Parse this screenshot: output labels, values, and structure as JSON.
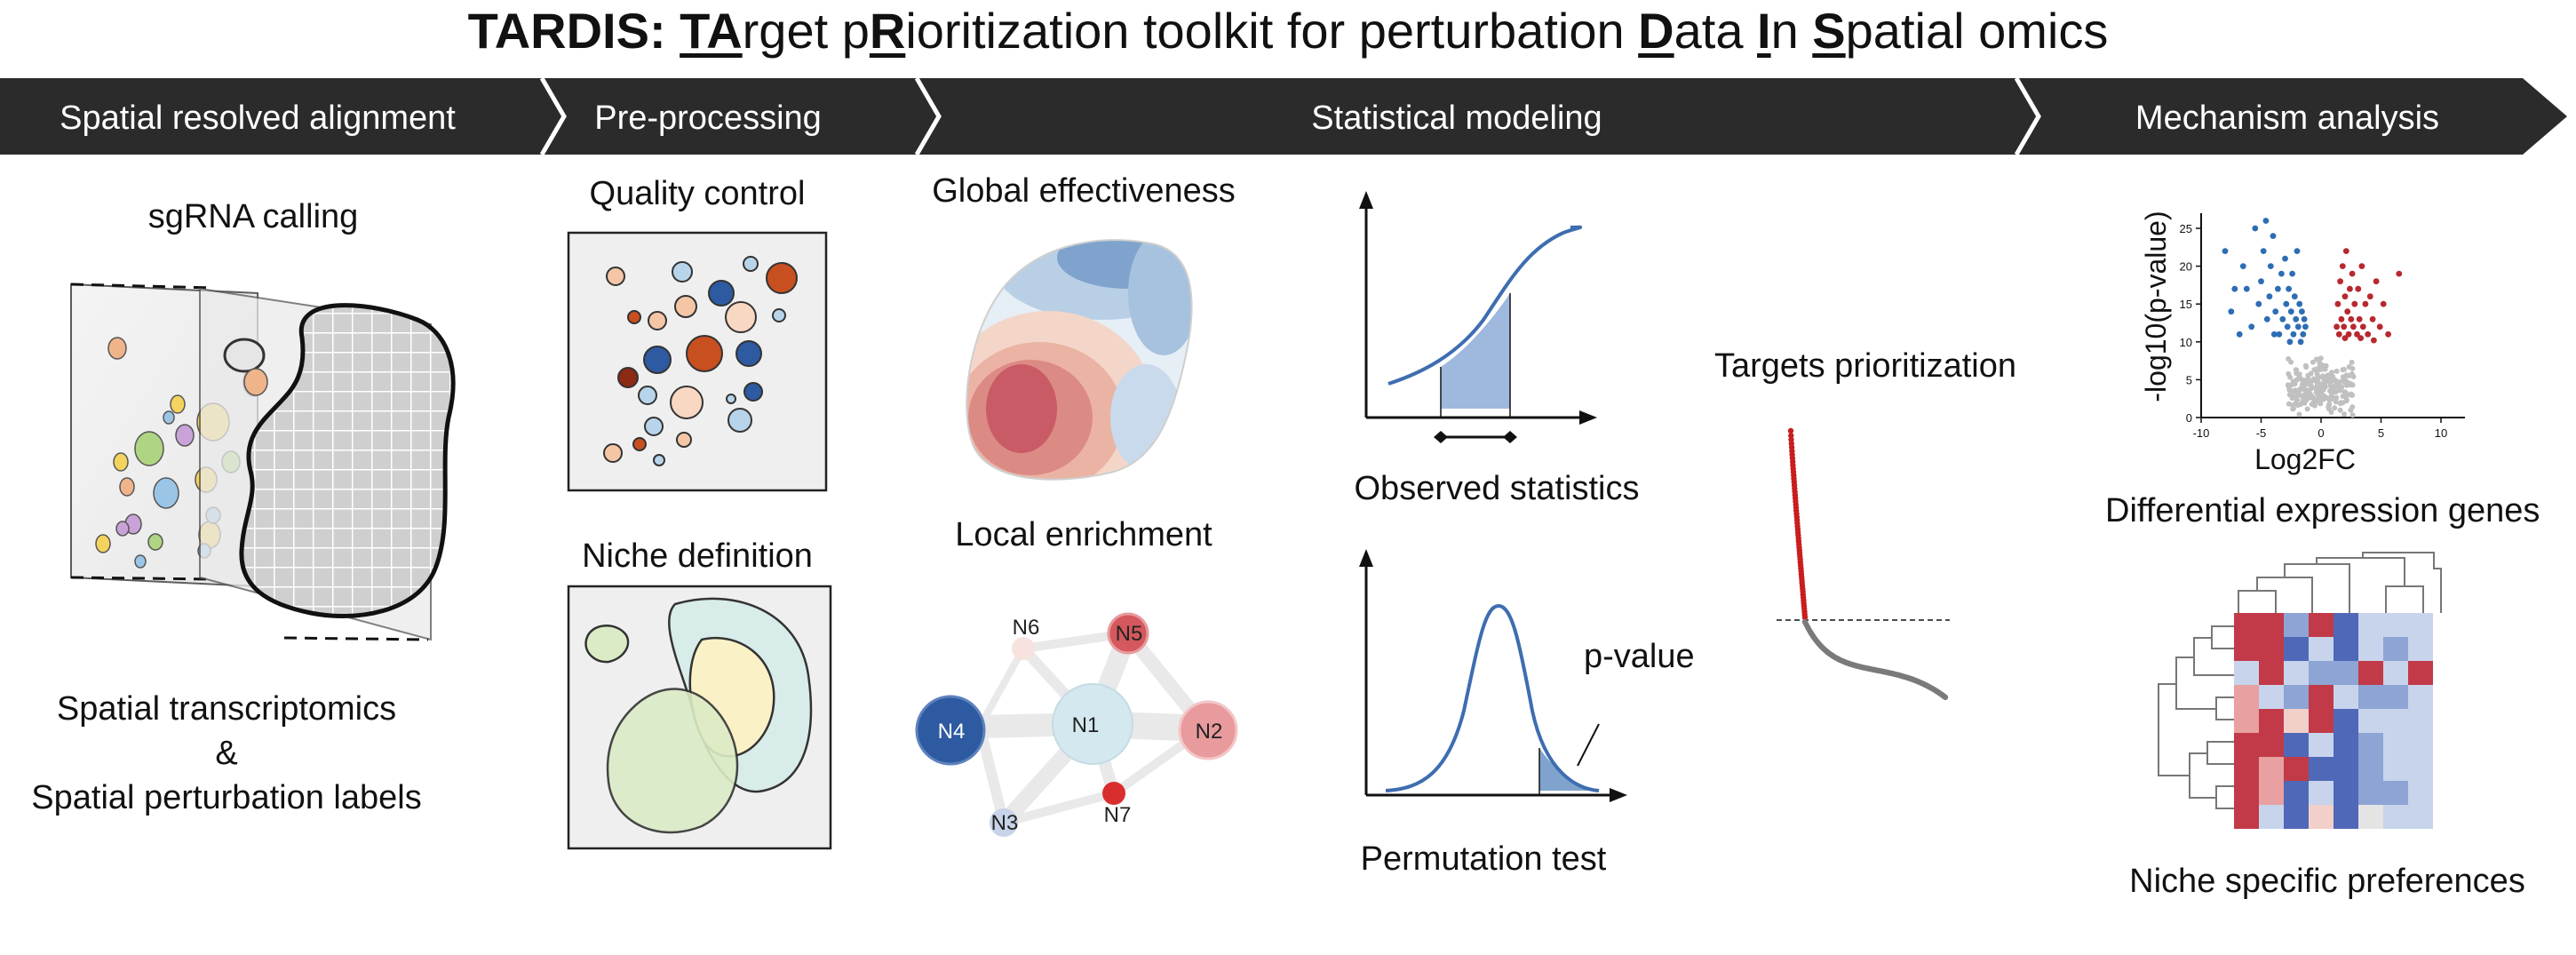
{
  "title": {
    "bold": "TARDIS:",
    "segments": [
      {
        "t": "TA",
        "u": true
      },
      {
        "t": "rget p",
        "u": false
      },
      {
        "t": "R",
        "u": true
      },
      {
        "t": "ioritization toolkit for perturbation ",
        "u": false
      },
      {
        "t": "D",
        "u": true
      },
      {
        "t": "ata ",
        "u": false
      },
      {
        "t": "I",
        "u": true
      },
      {
        "t": "n ",
        "u": false
      },
      {
        "t": "S",
        "u": true
      },
      {
        "t": "patial omics",
        "u": false
      }
    ]
  },
  "pipeline": {
    "step1": "Spatial resolved alignment",
    "step2": "Pre-processing",
    "step3": "Statistical modeling",
    "step4": "Mechanism analysis",
    "banner_color": "#2b2b2b"
  },
  "panels": {
    "sgrna_calling": "sgRNA calling",
    "spatial_transcriptomics": "Spatial transcriptomics",
    "ampersand": "&",
    "spatial_perturbation_labels": "Spatial perturbation labels",
    "quality_control": "Quality control",
    "niche_definition": "Niche definition",
    "global_effectiveness": "Global effectiveness",
    "local_enrichment": "Local enrichment",
    "observed_statistics": "Observed statistics",
    "permutation_test": "Permutation test",
    "p_value": "p-value",
    "targets_prioritization": "Targets prioritization",
    "differential_expression_genes": "Differential expression genes",
    "niche_specific_preferences": "Niche specific preferences"
  },
  "network": {
    "nodes": [
      {
        "id": "N1",
        "label": "N1",
        "color": "#d3e8ef"
      },
      {
        "id": "N2",
        "label": "N2",
        "color": "#e89a9c"
      },
      {
        "id": "N3",
        "label": "N3",
        "color": "#c7d3e8"
      },
      {
        "id": "N4",
        "label": "N4",
        "color": "#2d5aa0"
      },
      {
        "id": "N5",
        "label": "N5",
        "color": "#d4585d"
      },
      {
        "id": "N6",
        "label": "N6",
        "color": "#f7e2e0"
      },
      {
        "id": "N7",
        "label": "N7",
        "color": "#d92e2e"
      }
    ]
  },
  "chart_data": {
    "type": "scatter",
    "title": "",
    "xlabel": "Log2FC",
    "ylabel": "-log10(p-value)",
    "xticks": [
      "-10",
      "-5",
      "0",
      "5",
      "10"
    ],
    "yticks": [
      "0",
      "5",
      "10",
      "15",
      "20",
      "25"
    ],
    "xlim": [
      -10,
      12
    ],
    "ylim": [
      0,
      27
    ],
    "series": [
      {
        "color": "#2e6db4",
        "points": [
          [
            -8.0,
            22
          ],
          [
            -7.5,
            14
          ],
          [
            -6.5,
            20
          ],
          [
            -6.2,
            17
          ],
          [
            -5.8,
            12
          ],
          [
            -5.5,
            25
          ],
          [
            -5.2,
            15
          ],
          [
            -5.0,
            18
          ],
          [
            -4.8,
            22
          ],
          [
            -4.5,
            13
          ],
          [
            -4.3,
            16
          ],
          [
            -4.2,
            20
          ],
          [
            -4.0,
            24
          ],
          [
            -3.8,
            14
          ],
          [
            -3.6,
            17
          ],
          [
            -3.5,
            11
          ],
          [
            -3.3,
            19
          ],
          [
            -3.2,
            13
          ],
          [
            -3.0,
            21
          ],
          [
            -2.9,
            15
          ],
          [
            -2.8,
            12
          ],
          [
            -2.7,
            17
          ],
          [
            -2.6,
            10
          ],
          [
            -2.5,
            14
          ],
          [
            -2.4,
            19
          ],
          [
            -2.3,
            11
          ],
          [
            -2.2,
            16
          ],
          [
            -2.1,
            13
          ],
          [
            -2.0,
            22
          ],
          [
            -1.9,
            12
          ],
          [
            -1.8,
            15
          ],
          [
            -1.7,
            10
          ],
          [
            -1.6,
            14
          ],
          [
            -1.5,
            11
          ],
          [
            -1.4,
            13
          ],
          [
            -1.3,
            12
          ],
          [
            -6.8,
            11
          ],
          [
            -7.2,
            17
          ],
          [
            -4.6,
            26
          ],
          [
            -3.9,
            11
          ]
        ]
      },
      {
        "color": "#b8282e",
        "points": [
          [
            1.3,
            12
          ],
          [
            1.4,
            15
          ],
          [
            1.5,
            11
          ],
          [
            1.6,
            18
          ],
          [
            1.7,
            13
          ],
          [
            1.8,
            20
          ],
          [
            1.9,
            12
          ],
          [
            2.0,
            16
          ],
          [
            2.1,
            22
          ],
          [
            2.2,
            14
          ],
          [
            2.3,
            11
          ],
          [
            2.4,
            17
          ],
          [
            2.5,
            13
          ],
          [
            2.6,
            19
          ],
          [
            2.7,
            12
          ],
          [
            2.8,
            15
          ],
          [
            3.0,
            11
          ],
          [
            3.1,
            17
          ],
          [
            3.2,
            13
          ],
          [
            3.4,
            20
          ],
          [
            3.5,
            12
          ],
          [
            3.7,
            15
          ],
          [
            3.9,
            11
          ],
          [
            4.1,
            16
          ],
          [
            4.3,
            13
          ],
          [
            4.6,
            18
          ],
          [
            4.9,
            12
          ],
          [
            5.2,
            15
          ],
          [
            5.6,
            11
          ],
          [
            6.5,
            19
          ],
          [
            2.0,
            10.5
          ],
          [
            3.3,
            10.5
          ],
          [
            4.4,
            10.2
          ]
        ]
      }
    ]
  }
}
